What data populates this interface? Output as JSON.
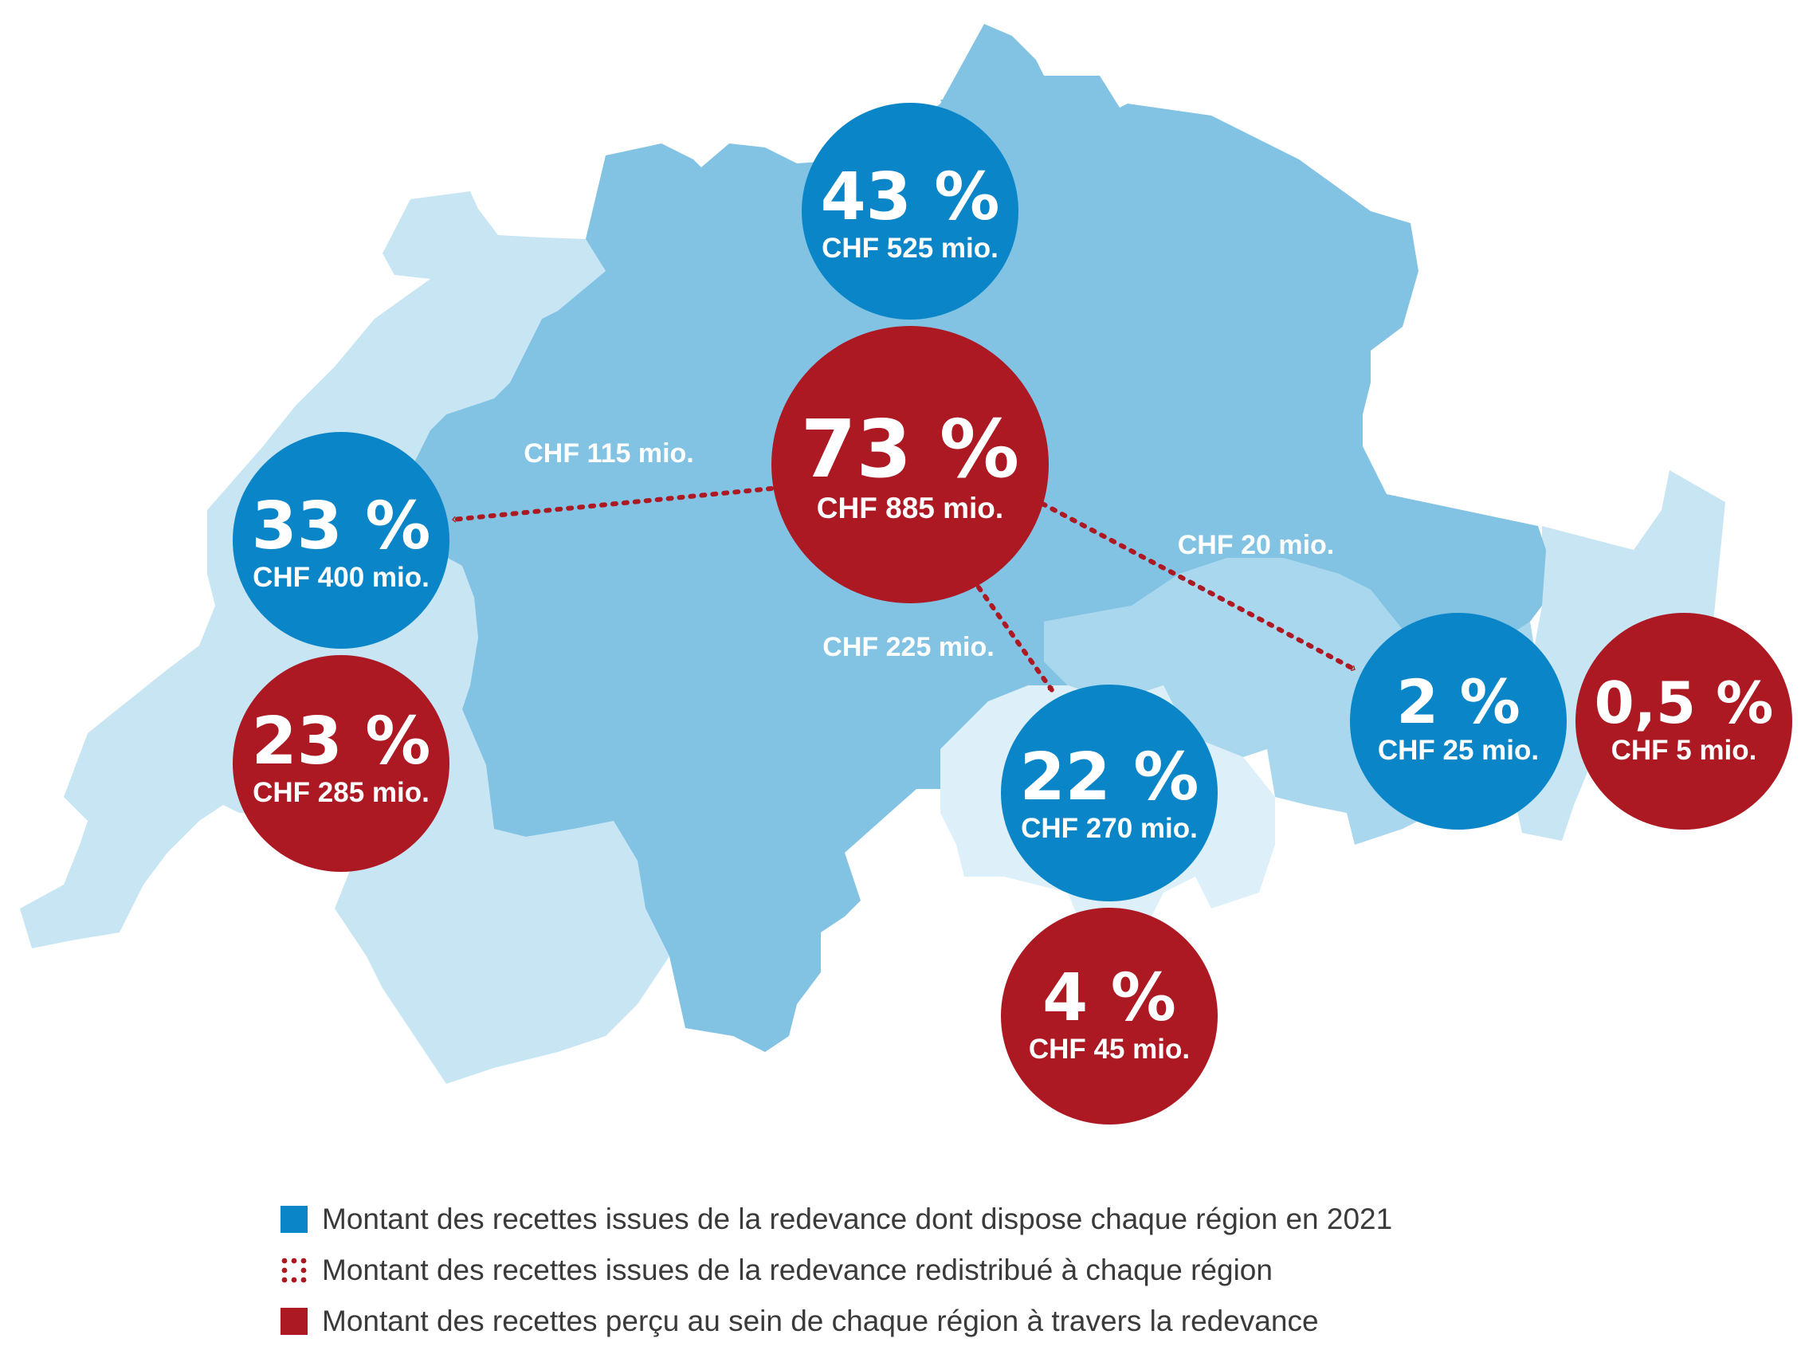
{
  "colors": {
    "blue_circle": "#0a86c8",
    "red_circle": "#ad1922",
    "region_dark": "#82c3e4",
    "region_mid": "#a9d7ee",
    "region_light": "#c8e5f4",
    "region_lightest": "#ddeff9",
    "flow": "#ad1922"
  },
  "regions": [
    {
      "id": "german",
      "label": "",
      "fill_key": "region_dark"
    },
    {
      "id": "french",
      "label": "",
      "fill_key": "region_light"
    },
    {
      "id": "italian",
      "label": "",
      "fill_key": "region_mid"
    },
    {
      "id": "romansh",
      "label": "",
      "fill_key": "region_light"
    }
  ],
  "circles": [
    {
      "id": "german-available",
      "kind": "blue",
      "percent": "43 %",
      "amount": "CHF 525 mio."
    },
    {
      "id": "german-collected",
      "kind": "red",
      "percent": "73 %",
      "amount": "CHF 885 mio."
    },
    {
      "id": "french-available",
      "kind": "blue",
      "percent": "33 %",
      "amount": "CHF 400 mio."
    },
    {
      "id": "french-collected",
      "kind": "red",
      "percent": "23 %",
      "amount": "CHF 285 mio."
    },
    {
      "id": "italian-available",
      "kind": "blue",
      "percent": "22 %",
      "amount": "CHF 270 mio."
    },
    {
      "id": "italian-collected",
      "kind": "red",
      "percent": "4 %",
      "amount": "CHF 45 mio."
    },
    {
      "id": "romansh-available",
      "kind": "blue",
      "percent": "2 %",
      "amount": "CHF 25 mio."
    },
    {
      "id": "romansh-collected",
      "kind": "red",
      "percent": "0,5 %",
      "amount": "CHF 5 mio."
    }
  ],
  "flows": [
    {
      "id": "to-french",
      "label": "CHF 115 mio."
    },
    {
      "id": "to-italian",
      "label": "CHF 225 mio."
    },
    {
      "id": "to-romansh",
      "label": "CHF 20 mio."
    }
  ],
  "legend": [
    {
      "kind": "blue",
      "text": "Montant des recettes issues de la redevance dont dispose chaque région en 2021"
    },
    {
      "kind": "dots",
      "text": "Montant des recettes issues de la redevance redistribué à chaque région"
    },
    {
      "kind": "red",
      "text": "Montant des recettes perçu au sein de chaque région à travers la redevance"
    }
  ]
}
